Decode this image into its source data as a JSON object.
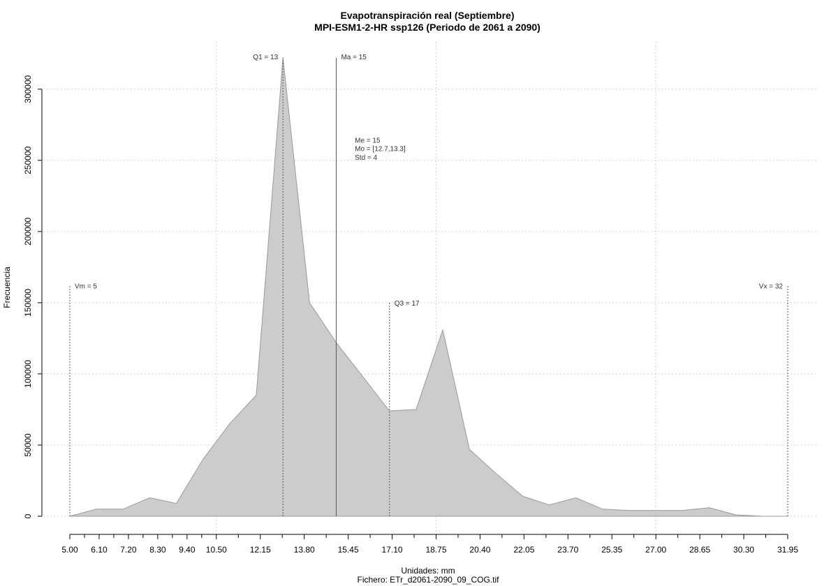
{
  "chart_data": {
    "type": "area",
    "title": "Evapotranspiración real (Septiembre)",
    "subtitle": "MPI-ESM1-2-HR ssp126 (Periodo de 2061 a 2090)",
    "xlabel": "Unidades: mm",
    "caption": "Fichero: ETr_d2061-2090_09_COG.tif",
    "ylabel": "Frecuencia",
    "xlim": [
      5.0,
      31.95
    ],
    "ylim": [
      0,
      320000
    ],
    "grid": true,
    "fill_color": "#cccccc",
    "line_color": "#999999",
    "x_ticks": [
      "5.00",
      "6.10",
      "7.20",
      "8.30",
      "9.40",
      "10.50",
      "12.15",
      "13.80",
      "15.45",
      "17.10",
      "18.75",
      "20.40",
      "22.05",
      "23.70",
      "25.35",
      "27.00",
      "28.65",
      "30.30",
      "31.95"
    ],
    "y_ticks": [
      "0",
      "50000",
      "100000",
      "150000",
      "200000",
      "250000",
      "300000"
    ],
    "x": [
      5.0,
      6.0,
      7.0,
      8.0,
      9.0,
      10.0,
      11.0,
      12.0,
      13.0,
      14.0,
      15.0,
      16.0,
      17.0,
      18.0,
      19.0,
      20.0,
      21.0,
      22.0,
      23.0,
      24.0,
      25.0,
      26.0,
      27.0,
      28.0,
      29.0,
      30.0,
      31.0,
      31.95
    ],
    "values": [
      0,
      5000,
      5000,
      13000,
      9000,
      40000,
      65000,
      85000,
      322000,
      150000,
      122000,
      98000,
      74000,
      75000,
      131000,
      47000,
      30000,
      14000,
      8000,
      13000,
      5000,
      4000,
      4000,
      4000,
      6000,
      1000,
      0,
      0
    ],
    "markers": [
      {
        "label": "Vm = 5",
        "x": 5.0,
        "top": 162000,
        "style": "dashed",
        "label_side": "right",
        "label_y": 161000
      },
      {
        "label": "Q1 = 13",
        "x": 13.0,
        "top": 322000,
        "style": "dashed",
        "label_side": "left",
        "label_y": 322000
      },
      {
        "label": "Ma = 15",
        "x": 15.0,
        "top": 322000,
        "style": "solid",
        "label_side": "right",
        "label_y": 322000
      },
      {
        "label": "Q3 = 17",
        "x": 17.0,
        "top": 150000,
        "style": "dashed",
        "label_side": "right",
        "label_y": 149000
      },
      {
        "label": "Vx = 32",
        "x": 31.95,
        "top": 162000,
        "style": "dashed",
        "label_side": "left",
        "label_y": 161000
      }
    ],
    "stats": {
      "x": 15.7,
      "lines": [
        "Me = 15",
        "Mo = [12.7,13.3]",
        "Std = 4"
      ],
      "y": [
        264000,
        258000,
        252000
      ]
    }
  }
}
